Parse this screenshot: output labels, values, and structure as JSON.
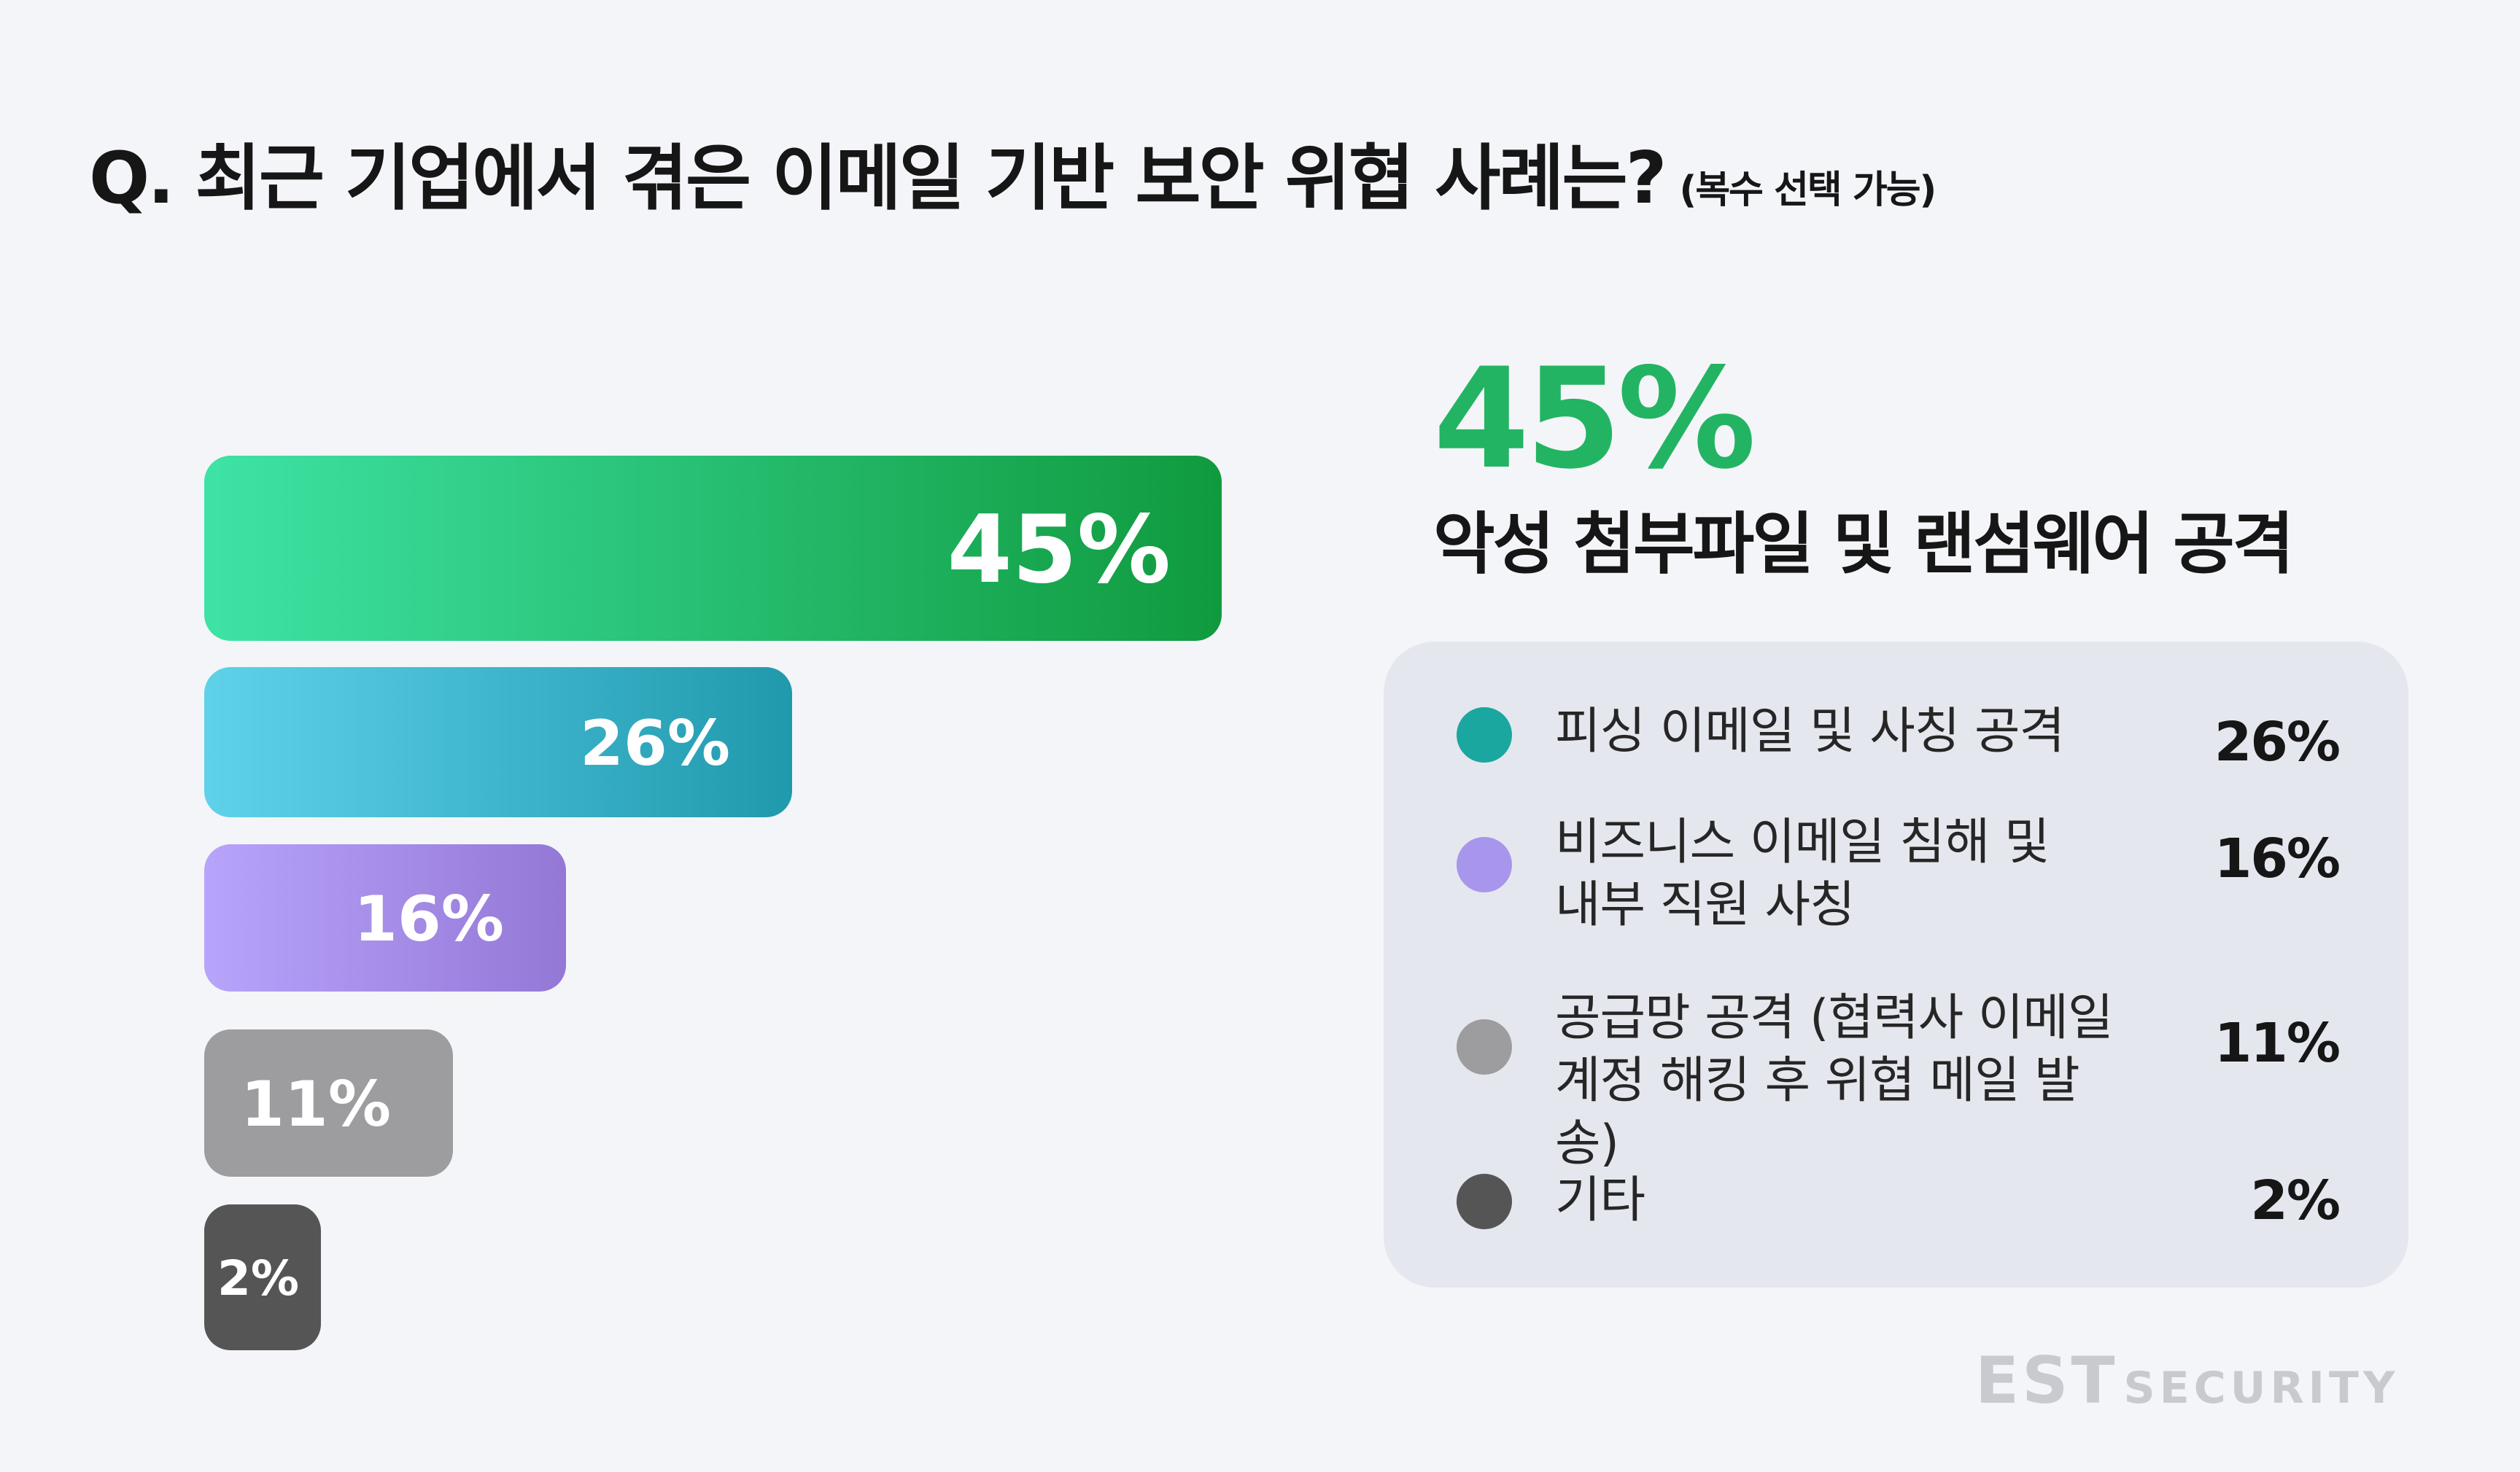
{
  "title": {
    "question": "Q. 최근 기업에서 겪은 이메일 기반 보안 위협 사례는?",
    "note": "(복수 선택 가능)"
  },
  "headline": {
    "percent": "45%",
    "label": "악성 첨부파일 및 랜섬웨어 공격"
  },
  "legend": [
    {
      "label": "피싱 이메일 및 사칭 공격",
      "value": "26%",
      "color": "#1aa7a0"
    },
    {
      "label": "비즈니스 이메일 침해 및\n내부 직원 사칭",
      "value": "16%",
      "color": "#a895ec"
    },
    {
      "label": "공급망 공격 (협력사 이메일\n계정 해킹 후 위협 메일 발송)",
      "value": "11%",
      "color": "#9d9c9f"
    },
    {
      "label": "기타",
      "value": "2%",
      "color": "#555555"
    }
  ],
  "logo": {
    "est": "EST",
    "security": "SECURITY"
  },
  "chart_data": {
    "type": "bar",
    "orientation": "horizontal",
    "categories": [
      "악성 첨부파일 및 랜섬웨어 공격",
      "피싱 이메일 및 사칭 공격",
      "비즈니스 이메일 침해 및 내부 직원 사칭",
      "공급망 공격 (협력사 이메일 계정 해킹 후 위협 메일 발송)",
      "기타"
    ],
    "values": [
      45,
      26,
      16,
      11,
      2
    ],
    "labels": [
      "45%",
      "26%",
      "16%",
      "11%",
      "2%"
    ],
    "colors": [
      [
        "#3ee3a5",
        "#109a3e"
      ],
      [
        "#5fd2ea",
        "#2099ad"
      ],
      [
        "#b7a4fb",
        "#9478d6"
      ],
      [
        "#9d9c9f",
        "#9d9c9f"
      ],
      [
        "#555555",
        "#555555"
      ]
    ],
    "unit": "%",
    "xlim": [
      0,
      45
    ],
    "grid": false
  }
}
